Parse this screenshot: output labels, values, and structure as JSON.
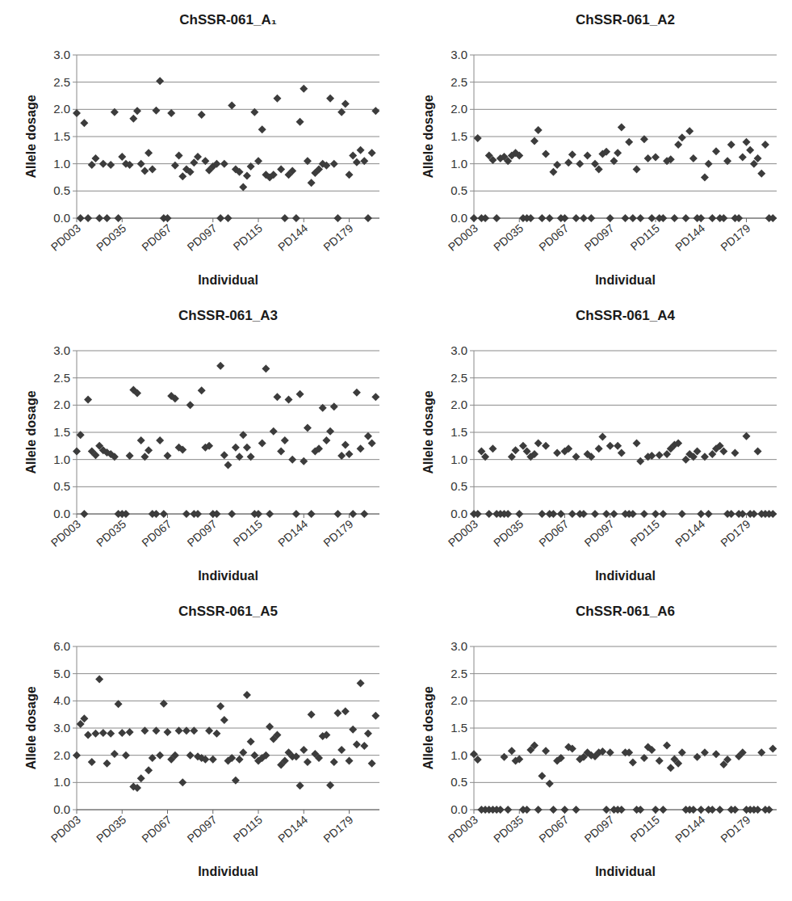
{
  "chart_data": [
    {
      "type": "scatter",
      "title": "ChSSR-061_A₁",
      "xlabel": "Individual",
      "ylabel": "Allele dosage",
      "color": "#3c3c3c",
      "marker": "diamond",
      "grid": true,
      "categories": [
        "PD003",
        null,
        null,
        null,
        null,
        null,
        null,
        null,
        null,
        null,
        null,
        null,
        "PD035",
        null,
        null,
        null,
        null,
        null,
        null,
        null,
        null,
        null,
        null,
        null,
        "PD067",
        null,
        null,
        null,
        null,
        null,
        null,
        null,
        null,
        null,
        null,
        null,
        "PD097",
        null,
        null,
        null,
        null,
        null,
        null,
        null,
        null,
        null,
        null,
        null,
        "PD115",
        null,
        null,
        null,
        null,
        null,
        null,
        null,
        null,
        null,
        null,
        null,
        "PD144",
        null,
        null,
        null,
        null,
        null,
        null,
        null,
        null,
        null,
        null,
        null,
        "PD179",
        null,
        null,
        null,
        null,
        null,
        null,
        null
      ],
      "values": [
        1.93,
        0,
        1.75,
        0,
        0.98,
        1.1,
        0,
        1.0,
        0,
        0.98,
        1.95,
        0,
        1.13,
        1.0,
        0.98,
        1.83,
        1.97,
        1.0,
        0.87,
        1.2,
        0.9,
        1.98,
        2.52,
        0,
        0,
        1.93,
        0.97,
        1.15,
        0.77,
        0.9,
        0.85,
        1.02,
        1.13,
        1.9,
        1.05,
        0.88,
        0.95,
        1.0,
        0,
        1.0,
        0,
        2.07,
        0.9,
        0.85,
        0.57,
        0.78,
        0.95,
        1.95,
        1.05,
        1.63,
        0.8,
        0.75,
        0.8,
        2.2,
        0.9,
        0,
        0.8,
        0.87,
        0,
        1.77,
        2.38,
        1.05,
        0.65,
        0.83,
        0.9,
        1.0,
        0.97,
        2.2,
        1.0,
        0,
        1.95,
        2.1,
        0.8,
        1.15,
        1.03,
        1.25,
        1.05,
        0,
        1.2,
        1.97
      ],
      "ylim": [
        0,
        3
      ],
      "yticks": [
        {
          "value": 0,
          "label": "0.0"
        },
        {
          "value": 0.5,
          "label": "0.5"
        },
        {
          "value": 1,
          "label": "1.0"
        },
        {
          "value": 1.5,
          "label": "1.5"
        },
        {
          "value": 2,
          "label": "2.0"
        },
        {
          "value": 2.5,
          "label": "2.5"
        },
        {
          "value": 3,
          "label": "3.0"
        }
      ]
    },
    {
      "type": "scatter",
      "title": "ChSSR-061_A2",
      "xlabel": "Individual",
      "ylabel": "Allele dosage",
      "color": "#3c3c3c",
      "marker": "diamond",
      "grid": true,
      "categories": [
        "PD003",
        null,
        null,
        null,
        null,
        null,
        null,
        null,
        null,
        null,
        null,
        null,
        "PD035",
        null,
        null,
        null,
        null,
        null,
        null,
        null,
        null,
        null,
        null,
        null,
        "PD067",
        null,
        null,
        null,
        null,
        null,
        null,
        null,
        null,
        null,
        null,
        null,
        "PD097",
        null,
        null,
        null,
        null,
        null,
        null,
        null,
        null,
        null,
        null,
        null,
        "PD115",
        null,
        null,
        null,
        null,
        null,
        null,
        null,
        null,
        null,
        null,
        null,
        "PD144",
        null,
        null,
        null,
        null,
        null,
        null,
        null,
        null,
        null,
        null,
        null,
        "PD179",
        null,
        null,
        null,
        null,
        null,
        null,
        null
      ],
      "values": [
        0,
        1.47,
        0,
        0,
        1.15,
        1.07,
        0,
        1.1,
        1.13,
        1.05,
        1.15,
        1.2,
        1.15,
        0,
        0,
        0,
        1.42,
        1.62,
        0,
        1.18,
        0,
        0.85,
        0.98,
        0,
        0,
        1.02,
        1.17,
        0,
        1.0,
        0,
        1.15,
        0,
        1.0,
        0.9,
        1.18,
        1.22,
        0,
        1.05,
        1.2,
        1.67,
        0,
        1.4,
        0,
        0.9,
        0,
        1.45,
        1.1,
        0,
        1.12,
        0,
        0,
        1.05,
        1.08,
        0,
        1.35,
        1.48,
        0,
        1.6,
        1.1,
        0,
        0,
        0.75,
        1.0,
        0,
        1.23,
        0,
        0,
        1.05,
        1.35,
        0,
        0,
        1.12,
        1.4,
        1.25,
        1.0,
        1.1,
        0.82,
        1.35,
        0,
        0
      ],
      "ylim": [
        0,
        3
      ],
      "yticks": [
        {
          "value": 0,
          "label": "0.0"
        },
        {
          "value": 0.5,
          "label": "0.5"
        },
        {
          "value": 1,
          "label": "1.0"
        },
        {
          "value": 1.5,
          "label": "1.5"
        },
        {
          "value": 2,
          "label": "2.0"
        },
        {
          "value": 2.5,
          "label": "2.5"
        },
        {
          "value": 3,
          "label": "3.0"
        }
      ]
    },
    {
      "type": "scatter",
      "title": "ChSSR-061_A3",
      "xlabel": "Individual",
      "ylabel": "Allele dosage",
      "color": "#3c3c3c",
      "marker": "diamond",
      "grid": true,
      "categories": [
        "PD003",
        null,
        null,
        null,
        null,
        null,
        null,
        null,
        null,
        null,
        null,
        null,
        "PD035",
        null,
        null,
        null,
        null,
        null,
        null,
        null,
        null,
        null,
        null,
        null,
        "PD067",
        null,
        null,
        null,
        null,
        null,
        null,
        null,
        null,
        null,
        null,
        null,
        "PD097",
        null,
        null,
        null,
        null,
        null,
        null,
        null,
        null,
        null,
        null,
        null,
        "PD115",
        null,
        null,
        null,
        null,
        null,
        null,
        null,
        null,
        null,
        null,
        null,
        "PD144",
        null,
        null,
        null,
        null,
        null,
        null,
        null,
        null,
        null,
        null,
        null,
        "PD179",
        null,
        null,
        null,
        null,
        null,
        null,
        null
      ],
      "values": [
        1.15,
        1.45,
        0,
        2.1,
        1.15,
        1.08,
        1.25,
        1.17,
        1.13,
        1.1,
        1.05,
        0,
        0,
        0,
        1.07,
        2.28,
        2.22,
        1.35,
        1.05,
        1.17,
        0,
        0,
        1.35,
        0,
        1.07,
        2.17,
        2.12,
        1.22,
        1.18,
        0,
        2.0,
        0,
        0,
        2.27,
        1.22,
        1.25,
        0,
        0,
        2.72,
        1.08,
        0.9,
        0,
        1.22,
        1.05,
        1.45,
        1.22,
        1.05,
        0,
        0,
        1.3,
        2.67,
        0,
        1.52,
        2.15,
        1.15,
        1.35,
        2.1,
        1.0,
        0,
        2.2,
        0.97,
        1.58,
        0,
        1.15,
        1.2,
        1.95,
        1.35,
        1.52,
        1.97,
        0,
        1.07,
        1.27,
        1.1,
        0,
        2.23,
        1.2,
        0,
        1.43,
        1.3,
        2.15
      ],
      "ylim": [
        0,
        3
      ],
      "yticks": [
        {
          "value": 0,
          "label": "0.0"
        },
        {
          "value": 0.5,
          "label": "0.5"
        },
        {
          "value": 1,
          "label": "1.0"
        },
        {
          "value": 1.5,
          "label": "1.5"
        },
        {
          "value": 2,
          "label": "2.0"
        },
        {
          "value": 2.5,
          "label": "2.5"
        },
        {
          "value": 3,
          "label": "3.0"
        }
      ]
    },
    {
      "type": "scatter",
      "title": "ChSSR-061_A4",
      "xlabel": "Individual",
      "ylabel": "Allele dosage",
      "color": "#3c3c3c",
      "marker": "diamond",
      "grid": true,
      "categories": [
        "PD003",
        null,
        null,
        null,
        null,
        null,
        null,
        null,
        null,
        null,
        null,
        null,
        "PD035",
        null,
        null,
        null,
        null,
        null,
        null,
        null,
        null,
        null,
        null,
        null,
        "PD067",
        null,
        null,
        null,
        null,
        null,
        null,
        null,
        null,
        null,
        null,
        null,
        "PD097",
        null,
        null,
        null,
        null,
        null,
        null,
        null,
        null,
        null,
        null,
        null,
        "PD115",
        null,
        null,
        null,
        null,
        null,
        null,
        null,
        null,
        null,
        null,
        null,
        "PD144",
        null,
        null,
        null,
        null,
        null,
        null,
        null,
        null,
        null,
        null,
        null,
        "PD179",
        null,
        null,
        null,
        null,
        null,
        null,
        null
      ],
      "values": [
        0,
        0,
        1.15,
        1.05,
        0,
        1.2,
        0,
        0,
        0,
        0,
        1.05,
        1.17,
        0,
        1.25,
        1.15,
        1.05,
        1.1,
        1.3,
        0,
        1.25,
        0,
        0,
        1.12,
        0,
        1.15,
        1.2,
        0,
        1.05,
        0,
        0,
        1.1,
        1.05,
        0,
        1.2,
        1.42,
        0,
        1.25,
        0,
        1.25,
        1.12,
        0,
        0,
        0,
        1.3,
        0.97,
        0,
        1.05,
        1.07,
        0,
        1.08,
        0,
        1.1,
        1.2,
        1.27,
        1.3,
        0,
        1.0,
        1.1,
        1.05,
        1.15,
        0,
        1.05,
        0,
        1.1,
        1.2,
        1.25,
        1.15,
        0,
        0,
        1.12,
        0,
        0,
        1.43,
        0,
        0,
        1.15,
        0,
        0,
        0,
        0
      ],
      "ylim": [
        0,
        3
      ],
      "yticks": [
        {
          "value": 0,
          "label": "0.0"
        },
        {
          "value": 0.5,
          "label": "0.5"
        },
        {
          "value": 1,
          "label": "1.0"
        },
        {
          "value": 1.5,
          "label": "1.5"
        },
        {
          "value": 2,
          "label": "2.0"
        },
        {
          "value": 2.5,
          "label": "2.5"
        },
        {
          "value": 3,
          "label": "3.0"
        }
      ]
    },
    {
      "type": "scatter",
      "title": "ChSSR-061_A5",
      "xlabel": "Individual",
      "ylabel": "Allele dosage",
      "color": "#3c3c3c",
      "marker": "diamond",
      "grid": true,
      "categories": [
        "PD003",
        null,
        null,
        null,
        null,
        null,
        null,
        null,
        null,
        null,
        null,
        null,
        "PD035",
        null,
        null,
        null,
        null,
        null,
        null,
        null,
        null,
        null,
        null,
        null,
        "PD067",
        null,
        null,
        null,
        null,
        null,
        null,
        null,
        null,
        null,
        null,
        null,
        "PD097",
        null,
        null,
        null,
        null,
        null,
        null,
        null,
        null,
        null,
        null,
        null,
        "PD115",
        null,
        null,
        null,
        null,
        null,
        null,
        null,
        null,
        null,
        null,
        null,
        "PD144",
        null,
        null,
        null,
        null,
        null,
        null,
        null,
        null,
        null,
        null,
        null,
        "PD179",
        null,
        null,
        null,
        null,
        null,
        null,
        null
      ],
      "values": [
        2.0,
        3.15,
        3.35,
        2.75,
        1.75,
        2.8,
        4.8,
        2.82,
        1.7,
        2.8,
        2.05,
        3.88,
        2.82,
        2.0,
        2.85,
        0.85,
        0.8,
        1.15,
        2.9,
        1.45,
        1.9,
        2.9,
        2.0,
        3.9,
        2.85,
        1.85,
        2.0,
        2.9,
        1.0,
        2.9,
        2.0,
        2.9,
        1.95,
        1.9,
        1.85,
        2.9,
        1.85,
        2.8,
        3.8,
        3.3,
        1.8,
        1.9,
        1.08,
        1.85,
        2.1,
        4.22,
        2.5,
        2.0,
        1.8,
        1.9,
        2.0,
        3.05,
        2.6,
        2.75,
        1.65,
        1.8,
        2.1,
        1.95,
        1.95,
        0.88,
        2.2,
        1.75,
        3.5,
        2.05,
        1.9,
        2.7,
        2.75,
        0.9,
        1.75,
        3.55,
        2.2,
        3.62,
        1.8,
        2.95,
        2.4,
        4.65,
        2.35,
        2.8,
        1.7,
        3.45
      ],
      "ylim": [
        0,
        6
      ],
      "yticks": [
        {
          "value": 0,
          "label": "0.0"
        },
        {
          "value": 1,
          "label": "1.0"
        },
        {
          "value": 2,
          "label": "2.0"
        },
        {
          "value": 3,
          "label": "3.0"
        },
        {
          "value": 4,
          "label": "4.0"
        },
        {
          "value": 5,
          "label": "5.0"
        },
        {
          "value": 6,
          "label": "6.0"
        }
      ]
    },
    {
      "type": "scatter",
      "title": "ChSSR-061_A6",
      "xlabel": "Individual",
      "ylabel": "Allele dosage",
      "color": "#3c3c3c",
      "marker": "diamond",
      "grid": true,
      "categories": [
        "PD003",
        null,
        null,
        null,
        null,
        null,
        null,
        null,
        null,
        null,
        null,
        null,
        "PD035",
        null,
        null,
        null,
        null,
        null,
        null,
        null,
        null,
        null,
        null,
        null,
        "PD067",
        null,
        null,
        null,
        null,
        null,
        null,
        null,
        null,
        null,
        null,
        null,
        "PD097",
        null,
        null,
        null,
        null,
        null,
        null,
        null,
        null,
        null,
        null,
        null,
        "PD115",
        null,
        null,
        null,
        null,
        null,
        null,
        null,
        null,
        null,
        null,
        null,
        "PD144",
        null,
        null,
        null,
        null,
        null,
        null,
        null,
        null,
        null,
        null,
        null,
        "PD179",
        null,
        null,
        null,
        null,
        null,
        null,
        null
      ],
      "values": [
        1.02,
        0.92,
        0,
        0,
        0,
        0,
        0,
        0,
        0.97,
        0,
        1.08,
        0.9,
        0.93,
        0,
        0,
        1.1,
        1.18,
        0,
        0.62,
        1.08,
        0.48,
        0,
        0.9,
        0.95,
        0,
        1.15,
        1.12,
        0,
        0.93,
        0.97,
        1.05,
        1.0,
        0.98,
        1.05,
        1.07,
        0,
        1.05,
        0,
        0,
        0,
        1.05,
        1.05,
        0.87,
        0,
        0,
        0.95,
        1.15,
        1.1,
        0,
        0.9,
        0,
        1.18,
        0.77,
        0.93,
        0.85,
        1.05,
        0,
        0,
        0,
        0.97,
        0,
        1.05,
        0,
        0,
        1.02,
        0,
        0.83,
        0.92,
        0,
        0,
        0.98,
        1.05,
        0,
        0,
        0,
        0,
        1.05,
        0,
        0,
        1.12
      ],
      "ylim": [
        0,
        3
      ],
      "yticks": [
        {
          "value": 0,
          "label": "0.0"
        },
        {
          "value": 0.5,
          "label": "0.5"
        },
        {
          "value": 1,
          "label": "1.0"
        },
        {
          "value": 1.5,
          "label": "1.5"
        },
        {
          "value": 2,
          "label": "2.0"
        },
        {
          "value": 2.5,
          "label": "2.5"
        },
        {
          "value": 3,
          "label": "3.0"
        }
      ]
    }
  ]
}
